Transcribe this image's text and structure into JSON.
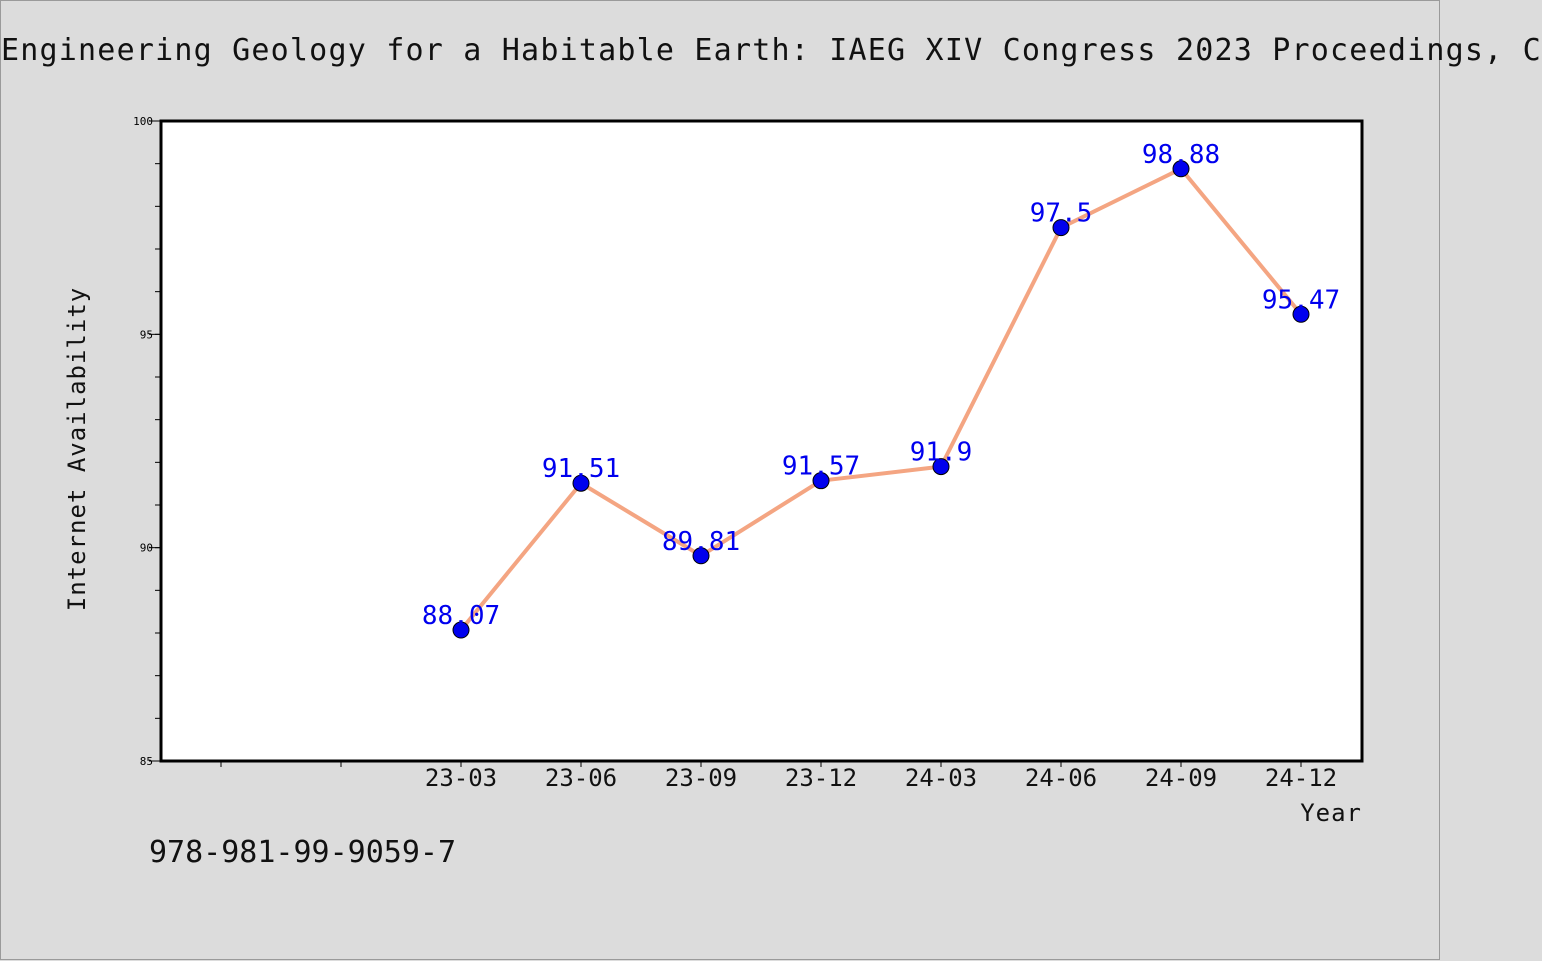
{
  "header": {
    "title": "Engineering Geology for a Habitable Earth: IAEG XIV Congress 2023 Proceedings, C"
  },
  "footer": {
    "isbn": "978-981-99-9059-7"
  },
  "colors": {
    "background": "#dcdcdc",
    "plot_background": "#ffffff",
    "line": "#f4a582",
    "marker": "#0000ee",
    "data_label": "#0000ee"
  },
  "chart_data": {
    "type": "line",
    "title": "Engineering Geology for a Habitable Earth: IAEG XIV Congress 2023 Proceedings, C",
    "xlabel": "Year",
    "ylabel": "Internet Availability",
    "categories": [
      "23-03",
      "23-06",
      "23-09",
      "23-12",
      "24-03",
      "24-06",
      "24-09",
      "24-12"
    ],
    "series": [
      {
        "values": [
          88.07,
          91.51,
          89.81,
          91.57,
          91.9,
          97.5,
          98.88,
          95.47
        ],
        "data_labels": [
          "88.07",
          "91.51",
          "89.81",
          "91.57",
          "91.9",
          "97.5",
          "98.88",
          "95.47"
        ]
      }
    ],
    "ylim": [
      85,
      100
    ],
    "yticks": [
      85,
      90,
      95,
      100
    ],
    "y_minor_step": 1,
    "x_extra_slots_before": 2,
    "grid": false,
    "legend": "none",
    "marker": "circle"
  }
}
